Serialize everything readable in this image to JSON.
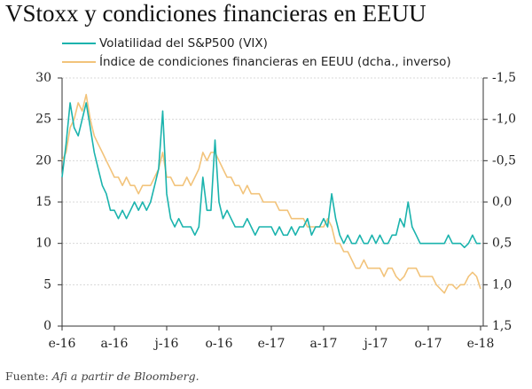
{
  "chart_data": {
    "type": "line",
    "title": "VStoxx y condiciones financieras en EEUU",
    "source_label": "Fuente:",
    "source_text": "Afi a partir de Bloomberg.",
    "categories": [
      "e-16",
      null,
      null,
      null,
      null,
      null,
      null,
      null,
      null,
      null,
      null,
      null,
      null,
      "a-16",
      null,
      null,
      null,
      null,
      null,
      null,
      null,
      null,
      null,
      null,
      null,
      null,
      "j-16",
      null,
      null,
      null,
      null,
      null,
      null,
      null,
      null,
      null,
      null,
      null,
      null,
      "o-16",
      null,
      null,
      null,
      null,
      null,
      null,
      null,
      null,
      null,
      null,
      null,
      null,
      "e-17",
      null,
      null,
      null,
      null,
      null,
      null,
      null,
      null,
      null,
      null,
      null,
      null,
      "a-17",
      null,
      null,
      null,
      null,
      null,
      null,
      null,
      null,
      null,
      null,
      null,
      null,
      "j-17",
      null,
      null,
      null,
      null,
      null,
      null,
      null,
      null,
      null,
      null,
      null,
      null,
      "o-17",
      null,
      null,
      null,
      null,
      null,
      null,
      null,
      null,
      null,
      null,
      null,
      null,
      "e-18"
    ],
    "series": [
      {
        "name": "Volatilidad del S&P500 (VIX)",
        "color": "#1ab3ad",
        "values": [
          18,
          22,
          27,
          24,
          23,
          25,
          27,
          24,
          21,
          19,
          17,
          16,
          14,
          14,
          13,
          14,
          13,
          14,
          15,
          14,
          15,
          14,
          15,
          17,
          19,
          26,
          16,
          13,
          12,
          13,
          12,
          12,
          12,
          11,
          12,
          18,
          14,
          14,
          22.5,
          15,
          13,
          14,
          13,
          12,
          12,
          12,
          13,
          12,
          11,
          12,
          12,
          12,
          12,
          11,
          12,
          11,
          11,
          12,
          11,
          12,
          12,
          13,
          11,
          12,
          12,
          13,
          12,
          16,
          13,
          11,
          10,
          11,
          10,
          10,
          11,
          10,
          10,
          11,
          10,
          11,
          10,
          10,
          11,
          11,
          13,
          12,
          15,
          12,
          11,
          10,
          10,
          10,
          10,
          10,
          10,
          10,
          11,
          10,
          10,
          10,
          9.5,
          10,
          11,
          10,
          10
        ]
      },
      {
        "name": "Índice de condiciones financieras en EEUU (dcha., inverso)",
        "color": "#f2c37a",
        "axis": "y2",
        "values": [
          -0.5,
          -0.6,
          -0.9,
          -1.0,
          -1.2,
          -1.1,
          -1.3,
          -1.0,
          -0.8,
          -0.7,
          -0.6,
          -0.5,
          -0.4,
          -0.3,
          -0.3,
          -0.2,
          -0.3,
          -0.2,
          -0.2,
          -0.1,
          -0.2,
          -0.2,
          -0.2,
          -0.3,
          -0.4,
          -0.6,
          -0.3,
          -0.3,
          -0.2,
          -0.2,
          -0.2,
          -0.3,
          -0.2,
          -0.3,
          -0.4,
          -0.6,
          -0.5,
          -0.6,
          -0.6,
          -0.5,
          -0.4,
          -0.3,
          -0.3,
          -0.2,
          -0.2,
          -0.1,
          -0.2,
          -0.1,
          -0.1,
          -0.1,
          0,
          0,
          0,
          0,
          0.1,
          0.1,
          0.1,
          0.2,
          0.2,
          0.2,
          0.2,
          0.3,
          0.3,
          0.3,
          0.3,
          0.3,
          0.2,
          0.3,
          0.5,
          0.5,
          0.6,
          0.6,
          0.7,
          0.8,
          0.8,
          0.7,
          0.8,
          0.8,
          0.8,
          0.8,
          0.9,
          0.8,
          0.8,
          0.9,
          0.95,
          0.9,
          0.8,
          0.8,
          0.8,
          0.9,
          0.9,
          0.9,
          0.9,
          1.0,
          1.05,
          1.1,
          1.0,
          1.0,
          1.05,
          1.0,
          1.0,
          0.9,
          0.85,
          0.9,
          1.05
        ]
      }
    ],
    "ylim": [
      0,
      30
    ],
    "yticks": [
      0,
      5,
      10,
      15,
      20,
      25,
      30
    ],
    "y2lim": [
      -1.5,
      1.5
    ],
    "y2_inverted": true,
    "y2ticks": [
      {
        "value": -1.5,
        "label": "-1,5"
      },
      {
        "value": -1.0,
        "label": "-1,0"
      },
      {
        "value": -0.5,
        "label": "-0,5"
      },
      {
        "value": 0,
        "label": "0,0"
      },
      {
        "value": 0.5,
        "label": "0,5"
      },
      {
        "value": 1.0,
        "label": "1,0"
      },
      {
        "value": 1.5,
        "label": "1,5"
      }
    ],
    "grid": true,
    "legend": "top-left"
  }
}
